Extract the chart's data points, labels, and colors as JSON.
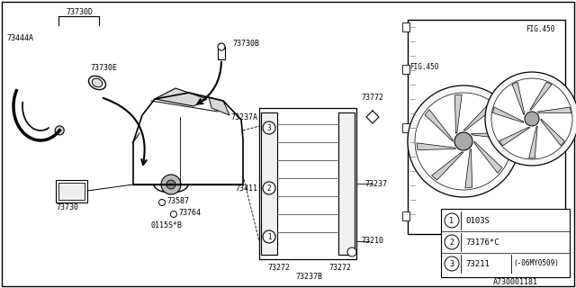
{
  "title": "",
  "bg_color": "#ffffff",
  "border_color": "#000000",
  "fig_number": "A730001181",
  "legend": [
    {
      "num": "1",
      "code": "0103S",
      "extra": ""
    },
    {
      "num": "2",
      "code": "73176*C",
      "extra": ""
    },
    {
      "num": "3",
      "code": "73211",
      "extra": "(-06MY0509)"
    }
  ],
  "parts": [
    "73730D",
    "73444A",
    "73730E",
    "73730B",
    "73730",
    "73587",
    "73764",
    "0115S*B",
    "73237A",
    "73411",
    "73272",
    "73237B",
    "73237",
    "73772",
    "73210",
    "FIG.450"
  ]
}
